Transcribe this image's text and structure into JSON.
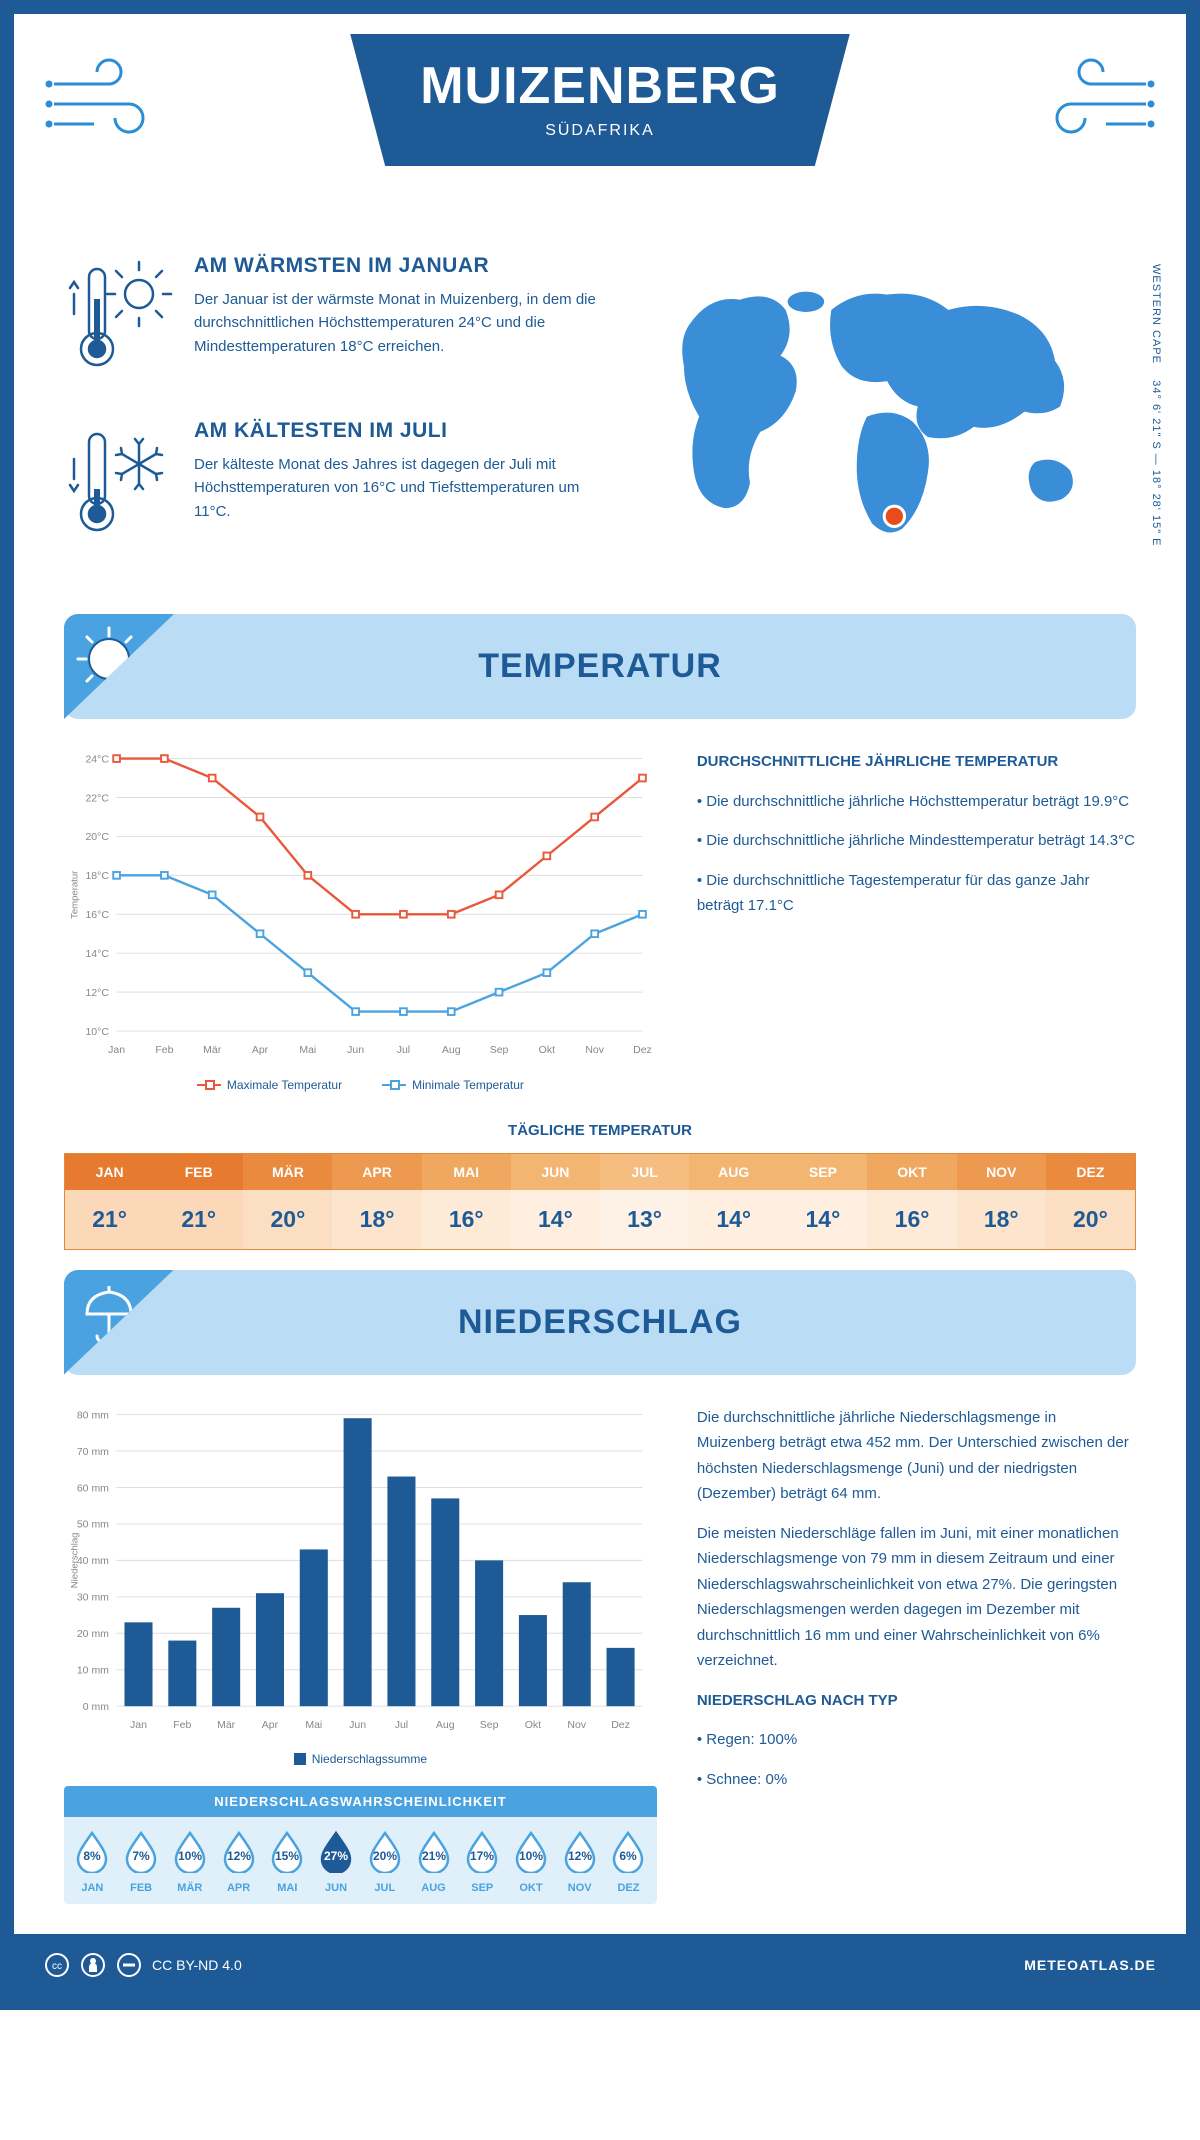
{
  "header": {
    "title": "MUIZENBERG",
    "subtitle": "SÜDAFRIKA"
  },
  "coords": {
    "lat": "34° 6' 21\" S",
    "lon": "18° 28' 15\" E",
    "region": "WESTERN CAPE"
  },
  "warmest": {
    "title": "AM WÄRMSTEN IM JANUAR",
    "text": "Der Januar ist der wärmste Monat in Muizenberg, in dem die durchschnittlichen Höchsttemperaturen 24°C und die Mindesttemperaturen 18°C erreichen."
  },
  "coldest": {
    "title": "AM KÄLTESTEN IM JULI",
    "text": "Der kälteste Monat des Jahres ist dagegen der Juli mit Höchsttemperaturen von 16°C und Tiefsttemperaturen um 11°C."
  },
  "temperatur": {
    "section_title": "TEMPERATUR",
    "annual_title": "DURCHSCHNITTLICHE JÄHRLICHE TEMPERATUR",
    "bullets": [
      "• Die durchschnittliche jährliche Höchsttemperatur beträgt 19.9°C",
      "• Die durchschnittliche jährliche Mindesttemperatur beträgt 14.3°C",
      "• Die durchschnittliche Tagestemperatur für das ganze Jahr beträgt 17.1°C"
    ],
    "months": [
      "Jan",
      "Feb",
      "Mär",
      "Apr",
      "Mai",
      "Jun",
      "Jul",
      "Aug",
      "Sep",
      "Okt",
      "Nov",
      "Dez"
    ],
    "max_series": [
      24,
      24,
      23,
      21,
      18,
      16,
      16,
      16,
      17,
      19,
      21,
      23
    ],
    "min_series": [
      18,
      18,
      17,
      15,
      13,
      11,
      11,
      11,
      12,
      13,
      15,
      16
    ],
    "y_ticks": [
      10,
      12,
      14,
      16,
      18,
      20,
      22,
      24
    ],
    "ylim": [
      10,
      24
    ],
    "max_color": "#e8583a",
    "min_color": "#4aa3e0",
    "max_label": "Maximale Temperatur",
    "min_label": "Minimale Temperatur",
    "axis_label": "Temperatur"
  },
  "daily_temp": {
    "title": "TÄGLICHE TEMPERATUR",
    "months": [
      "JAN",
      "FEB",
      "MÄR",
      "APR",
      "MAI",
      "JUN",
      "JUL",
      "AUG",
      "SEP",
      "OKT",
      "NOV",
      "DEZ"
    ],
    "values": [
      "21°",
      "21°",
      "20°",
      "18°",
      "16°",
      "14°",
      "13°",
      "14°",
      "14°",
      "16°",
      "18°",
      "20°"
    ],
    "header_colors": [
      "#e67a2e",
      "#e67a2e",
      "#ea8a3e",
      "#ed9a50",
      "#f0a860",
      "#f3b572",
      "#f5bd80",
      "#f3b572",
      "#f3b572",
      "#f0a860",
      "#ed9a50",
      "#ea8a3e"
    ],
    "value_colors": [
      "#fbd9b8",
      "#fbd9b8",
      "#fcdfc2",
      "#fde5cd",
      "#fdead7",
      "#feefe0",
      "#fef2e6",
      "#feefe0",
      "#feefe0",
      "#fdead7",
      "#fde5cd",
      "#fcdfc2"
    ]
  },
  "niederschlag": {
    "section_title": "NIEDERSCHLAG",
    "text1": "Die durchschnittliche jährliche Niederschlagsmenge in Muizenberg beträgt etwa 452 mm. Der Unterschied zwischen der höchsten Niederschlagsmenge (Juni) und der niedrigsten (Dezember) beträgt 64 mm.",
    "text2": "Die meisten Niederschläge fallen im Juni, mit einer monatlichen Niederschlagsmenge von 79 mm in diesem Zeitraum und einer Niederschlagswahrscheinlichkeit von etwa 27%. Die geringsten Niederschlagsmengen werden dagegen im Dezember mit durchschnittlich 16 mm und einer Wahrscheinlichkeit von 6% verzeichnet.",
    "type_title": "NIEDERSCHLAG NACH TYP",
    "type_bullets": [
      "• Regen: 100%",
      "• Schnee: 0%"
    ],
    "months": [
      "Jan",
      "Feb",
      "Mär",
      "Apr",
      "Mai",
      "Jun",
      "Jul",
      "Aug",
      "Sep",
      "Okt",
      "Nov",
      "Dez"
    ],
    "values": [
      23,
      18,
      27,
      31,
      43,
      79,
      63,
      57,
      40,
      25,
      34,
      16
    ],
    "y_ticks": [
      0,
      10,
      20,
      30,
      40,
      50,
      60,
      70,
      80
    ],
    "ylim": [
      0,
      80
    ],
    "bar_color": "#1e5a96",
    "legend_label": "Niederschlagssumme",
    "axis_label": "Niederschlag"
  },
  "probability": {
    "title": "NIEDERSCHLAGSWAHRSCHEINLICHKEIT",
    "months": [
      "JAN",
      "FEB",
      "MÄR",
      "APR",
      "MAI",
      "JUN",
      "JUL",
      "AUG",
      "SEP",
      "OKT",
      "NOV",
      "DEZ"
    ],
    "values": [
      "8%",
      "7%",
      "10%",
      "12%",
      "15%",
      "27%",
      "20%",
      "21%",
      "17%",
      "10%",
      "12%",
      "6%"
    ],
    "max_index": 5,
    "fill_color": "#1e5a96",
    "outline_color": "#4aa3e0"
  },
  "footer": {
    "license": "CC BY-ND 4.0",
    "site": "METEOATLAS.DE"
  }
}
